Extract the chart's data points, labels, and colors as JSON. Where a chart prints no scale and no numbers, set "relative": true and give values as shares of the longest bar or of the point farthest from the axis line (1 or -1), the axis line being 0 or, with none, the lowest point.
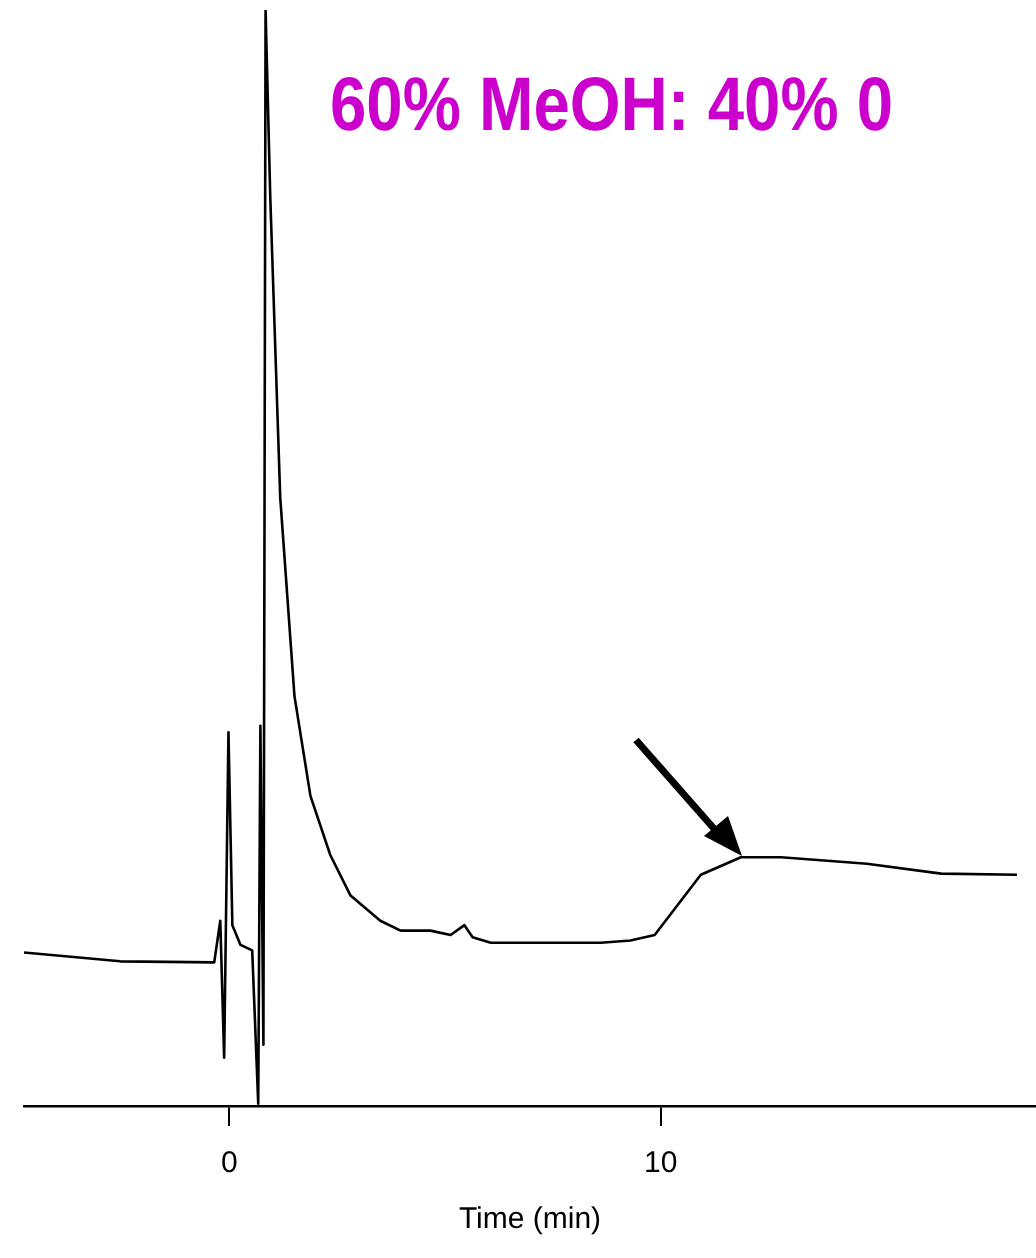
{
  "chart_data": {
    "type": "line",
    "title": "60% MeOH: 40% 0",
    "xlabel": "Time (min)",
    "relative": true,
    "xlim": [
      -4.76,
      18.7
    ],
    "xticks": [
      0,
      10
    ],
    "grid": false,
    "legend": false,
    "series": [
      {
        "color": "#000000",
        "x": [
          -4.76,
          -2.53,
          -0.35,
          -0.21,
          -0.12,
          -0.02,
          0.07,
          0.26,
          0.53,
          0.67,
          0.72,
          0.79,
          0.84,
          0.95,
          1.18,
          1.51,
          1.88,
          2.34,
          2.81,
          3.5,
          3.97,
          4.66,
          5.13,
          5.45,
          5.64,
          6.06,
          8.61,
          9.3,
          9.86,
          10.93,
          11.86,
          12.79,
          14.78,
          16.5,
          18.26
        ],
        "values": [
          0.14,
          0.132,
          0.131,
          0.169,
          0.044,
          0.341,
          0.165,
          0.147,
          0.142,
          0.002,
          0.347,
          0.056,
          1.0,
          0.828,
          0.555,
          0.374,
          0.283,
          0.229,
          0.192,
          0.169,
          0.16,
          0.16,
          0.156,
          0.165,
          0.154,
          0.149,
          0.149,
          0.151,
          0.156,
          0.211,
          0.227,
          0.227,
          0.221,
          0.212,
          0.211
        ]
      }
    ]
  }
}
